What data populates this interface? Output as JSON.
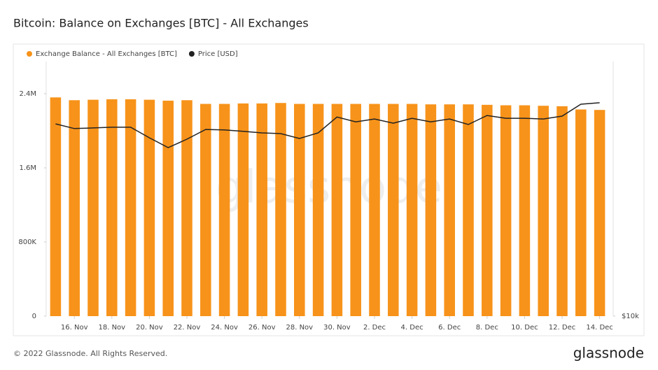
{
  "chart_data": {
    "type": "bar",
    "title": "Bitcoin: Balance on Exchanges [BTC] - All Exchanges",
    "watermark": "glassnode",
    "footer": "© 2022 Glassnode. All Rights Reserved.",
    "brand": "glassnode",
    "categories": [
      null,
      "16. Nov",
      null,
      "18. Nov",
      null,
      "20. Nov",
      null,
      "22. Nov",
      null,
      "24. Nov",
      null,
      "26. Nov",
      null,
      "28. Nov",
      null,
      "30. Nov",
      null,
      "2. Dec",
      null,
      "4. Dec",
      null,
      "6. Dec",
      null,
      "8. Dec",
      null,
      "10. Dec",
      null,
      "12. Dec",
      null,
      "14. Dec"
    ],
    "series": [
      {
        "name": "Exchange Balance - All Exchanges [BTC]",
        "type": "bar",
        "color": "#f7931a",
        "values": [
          2360000,
          2330000,
          2335000,
          2340000,
          2340000,
          2335000,
          2325000,
          2330000,
          2290000,
          2290000,
          2295000,
          2295000,
          2300000,
          2290000,
          2290000,
          2290000,
          2290000,
          2290000,
          2290000,
          2290000,
          2285000,
          2285000,
          2285000,
          2280000,
          2275000,
          2275000,
          2270000,
          2265000,
          2230000,
          2225000
        ]
      },
      {
        "name": "Price [USD]",
        "type": "line",
        "color": "#222222",
        "axis": "y2",
        "values": [
          16720,
          16510,
          16540,
          16570,
          16570,
          16110,
          15690,
          16050,
          16470,
          16450,
          16390,
          16320,
          16290,
          16080,
          16320,
          17030,
          16810,
          16940,
          16750,
          16970,
          16810,
          16940,
          16690,
          17100,
          16970,
          16970,
          16940,
          17070,
          17620,
          17690
        ]
      }
    ],
    "ylim": [
      0,
      2747000
    ],
    "yticks": [
      0,
      {
        "value": 800000,
        "label": "800K"
      },
      {
        "value": 1600000,
        "label": "1.6M"
      },
      {
        "value": 2400000,
        "label": "2.4M"
      }
    ],
    "y2lim": [
      10000,
      19750
    ],
    "y2scale": "log",
    "y2ticks": [
      {
        "value": 10000,
        "label": "$10k"
      }
    ],
    "legend": "top-left"
  }
}
